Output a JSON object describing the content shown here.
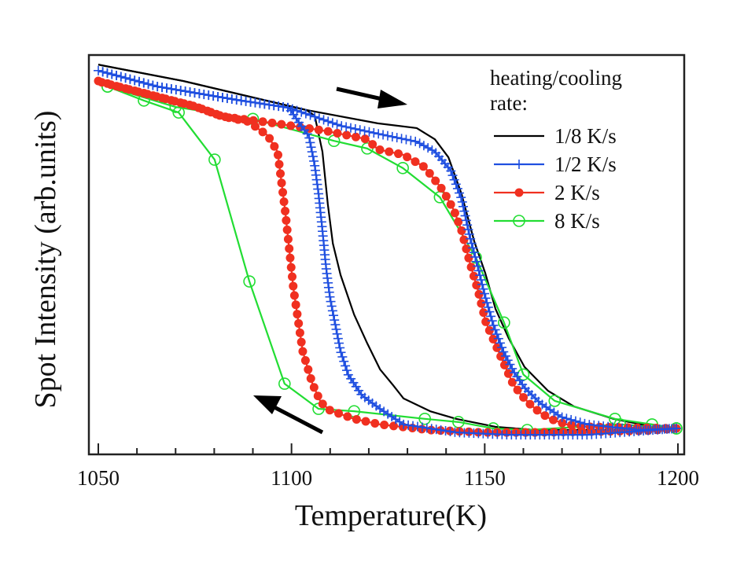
{
  "chart_data": {
    "type": "line",
    "title": "",
    "xlabel": "Temperature(K)",
    "ylabel": "Spot Intensity (arb.units)",
    "xlim": [
      1047,
      1201
    ],
    "ylim": [
      0,
      1
    ],
    "xticks": [
      1050,
      1100,
      1150,
      1200
    ],
    "xtick_labels": [
      "1050",
      "1100",
      "1150",
      "1200"
    ],
    "x_minor_step": 10,
    "y_ticks_shown": false,
    "grid": false,
    "legend": {
      "title_line1": "heating/cooling",
      "title_line2": "rate:",
      "placement": "top-right"
    },
    "annotations": [
      {
        "type": "arrow",
        "direction": "heating (rightwards, upper branch)"
      },
      {
        "type": "arrow",
        "direction": "cooling (leftwards, lower branch)"
      }
    ],
    "series": [
      {
        "name": "1/8 K/s",
        "color": "#000000",
        "marker": "none",
        "heating": [
          [
            1050,
            0.976
          ],
          [
            1072,
            0.935
          ],
          [
            1104,
            0.862
          ],
          [
            1122.3,
            0.829
          ],
          [
            1132.4,
            0.817
          ],
          [
            1137.1,
            0.789
          ],
          [
            1140.6,
            0.744
          ],
          [
            1144,
            0.652
          ],
          [
            1147.3,
            0.533
          ],
          [
            1150.1,
            0.455
          ],
          [
            1152.8,
            0.364
          ],
          [
            1156.2,
            0.291
          ],
          [
            1160.3,
            0.219
          ],
          [
            1166.4,
            0.159
          ],
          [
            1173.1,
            0.12
          ],
          [
            1183.3,
            0.089
          ],
          [
            1193.5,
            0.069
          ],
          [
            1199.6,
            0.065
          ]
        ],
        "cooling": [
          [
            1199.6,
            0.065
          ],
          [
            1183.3,
            0.061
          ],
          [
            1163,
            0.061
          ],
          [
            1152.8,
            0.069
          ],
          [
            1142.6,
            0.089
          ],
          [
            1135.9,
            0.108
          ],
          [
            1129,
            0.14
          ],
          [
            1126.3,
            0.173
          ],
          [
            1122.9,
            0.213
          ],
          [
            1119.6,
            0.278
          ],
          [
            1116.2,
            0.35
          ],
          [
            1112.7,
            0.449
          ],
          [
            1110.7,
            0.528
          ],
          [
            1109.4,
            0.626
          ],
          [
            1108,
            0.758
          ],
          [
            1106,
            0.848
          ],
          [
            1103.9,
            0.862
          ],
          [
            1072,
            0.935
          ],
          [
            1050,
            0.976
          ]
        ]
      },
      {
        "name": "1/2 K/s",
        "color": "#1f4fe0",
        "marker": "plus",
        "heating": [
          [
            1050,
            0.961
          ],
          [
            1065.3,
            0.921
          ],
          [
            1085.6,
            0.888
          ],
          [
            1099.3,
            0.868
          ],
          [
            1112.7,
            0.823
          ],
          [
            1122.3,
            0.803
          ],
          [
            1132.4,
            0.783
          ],
          [
            1137.1,
            0.758
          ],
          [
            1141.2,
            0.711
          ],
          [
            1144,
            0.64
          ],
          [
            1146.1,
            0.547
          ],
          [
            1148.1,
            0.474
          ],
          [
            1150.1,
            0.396
          ],
          [
            1152.2,
            0.325
          ],
          [
            1154.8,
            0.258
          ],
          [
            1157.5,
            0.207
          ],
          [
            1160.3,
            0.167
          ],
          [
            1164.4,
            0.128
          ],
          [
            1169.7,
            0.094
          ],
          [
            1176.6,
            0.075
          ],
          [
            1190,
            0.061
          ],
          [
            1199.6,
            0.065
          ]
        ],
        "cooling": [
          [
            1199.6,
            0.065
          ],
          [
            1176.6,
            0.049
          ],
          [
            1156.2,
            0.049
          ],
          [
            1142.6,
            0.055
          ],
          [
            1129,
            0.075
          ],
          [
            1122.9,
            0.114
          ],
          [
            1118.2,
            0.148
          ],
          [
            1114.7,
            0.199
          ],
          [
            1112.7,
            0.258
          ],
          [
            1111.5,
            0.317
          ],
          [
            1110,
            0.39
          ],
          [
            1109,
            0.463
          ],
          [
            1108,
            0.561
          ],
          [
            1107,
            0.652
          ],
          [
            1106,
            0.724
          ],
          [
            1104.5,
            0.797
          ],
          [
            1102.5,
            0.823
          ],
          [
            1099.3,
            0.868
          ],
          [
            1085.6,
            0.888
          ],
          [
            1065.3,
            0.921
          ],
          [
            1050,
            0.961
          ]
        ]
      },
      {
        "name": "2 K/s",
        "color": "#f03020",
        "marker": "filled-circle",
        "heating": [
          [
            1050,
            0.935
          ],
          [
            1055.1,
            0.921
          ],
          [
            1059.2,
            0.911
          ],
          [
            1066.7,
            0.892
          ],
          [
            1074.8,
            0.872
          ],
          [
            1082.2,
            0.846
          ],
          [
            1095,
            0.83
          ],
          [
            1109.4,
            0.809
          ],
          [
            1119.6,
            0.789
          ],
          [
            1122.3,
            0.764
          ],
          [
            1129,
            0.75
          ],
          [
            1134.5,
            0.719
          ],
          [
            1139.2,
            0.661
          ],
          [
            1142,
            0.612
          ],
          [
            1144,
            0.561
          ],
          [
            1146.1,
            0.482
          ],
          [
            1148.3,
            0.409
          ],
          [
            1150.3,
            0.331
          ],
          [
            1153.2,
            0.266
          ],
          [
            1155.2,
            0.222
          ],
          [
            1157.3,
            0.177
          ],
          [
            1159.5,
            0.148
          ],
          [
            1161.9,
            0.124
          ],
          [
            1164.4,
            0.104
          ],
          [
            1167,
            0.089
          ],
          [
            1171.1,
            0.075
          ],
          [
            1176.6,
            0.069
          ],
          [
            1199.6,
            0.065
          ]
        ],
        "cooling": [
          [
            1199.6,
            0.065
          ],
          [
            1191.5,
            0.059
          ],
          [
            1163,
            0.055
          ],
          [
            1149.3,
            0.055
          ],
          [
            1135.9,
            0.061
          ],
          [
            1122.9,
            0.075
          ],
          [
            1116.2,
            0.089
          ],
          [
            1110,
            0.11
          ],
          [
            1107.6,
            0.13
          ],
          [
            1105.4,
            0.177
          ],
          [
            1102.9,
            0.258
          ],
          [
            1100.5,
            0.415
          ],
          [
            1098.4,
            0.606
          ],
          [
            1096.4,
            0.758
          ],
          [
            1093.8,
            0.799
          ],
          [
            1091.7,
            0.813
          ],
          [
            1089.1,
            0.833
          ],
          [
            1082.2,
            0.846
          ],
          [
            1074.8,
            0.872
          ],
          [
            1066.7,
            0.892
          ],
          [
            1059.2,
            0.911
          ],
          [
            1055.1,
            0.921
          ],
          [
            1049.6,
            0.935
          ]
        ]
      },
      {
        "name": "8 K/s",
        "color": "#22dd33",
        "marker": "open-circle",
        "heating": [
          [
            1052.4,
            0.921
          ],
          [
            1070,
            0.87
          ],
          [
            1090,
            0.84
          ],
          [
            1111,
            0.785
          ],
          [
            1119.6,
            0.766
          ],
          [
            1128.8,
            0.717
          ],
          [
            1138.4,
            0.644
          ],
          [
            1147.7,
            0.493
          ],
          [
            1155,
            0.33
          ],
          [
            1160,
            0.2
          ],
          [
            1168.1,
            0.134
          ],
          [
            1183.7,
            0.089
          ],
          [
            1193.3,
            0.075
          ],
          [
            1199.6,
            0.065
          ]
        ],
        "cooling": [
          [
            1199.6,
            0.065
          ],
          [
            1185,
            0.075
          ],
          [
            1161,
            0.061
          ],
          [
            1152.2,
            0.065
          ],
          [
            1143.2,
            0.081
          ],
          [
            1134.5,
            0.089
          ],
          [
            1116.2,
            0.108
          ],
          [
            1107,
            0.114
          ],
          [
            1098.2,
            0.177
          ],
          [
            1089.1,
            0.433
          ],
          [
            1080.1,
            0.738
          ],
          [
            1070.8,
            0.856
          ],
          [
            1061.8,
            0.886
          ],
          [
            1052.4,
            0.921
          ]
        ]
      }
    ]
  }
}
